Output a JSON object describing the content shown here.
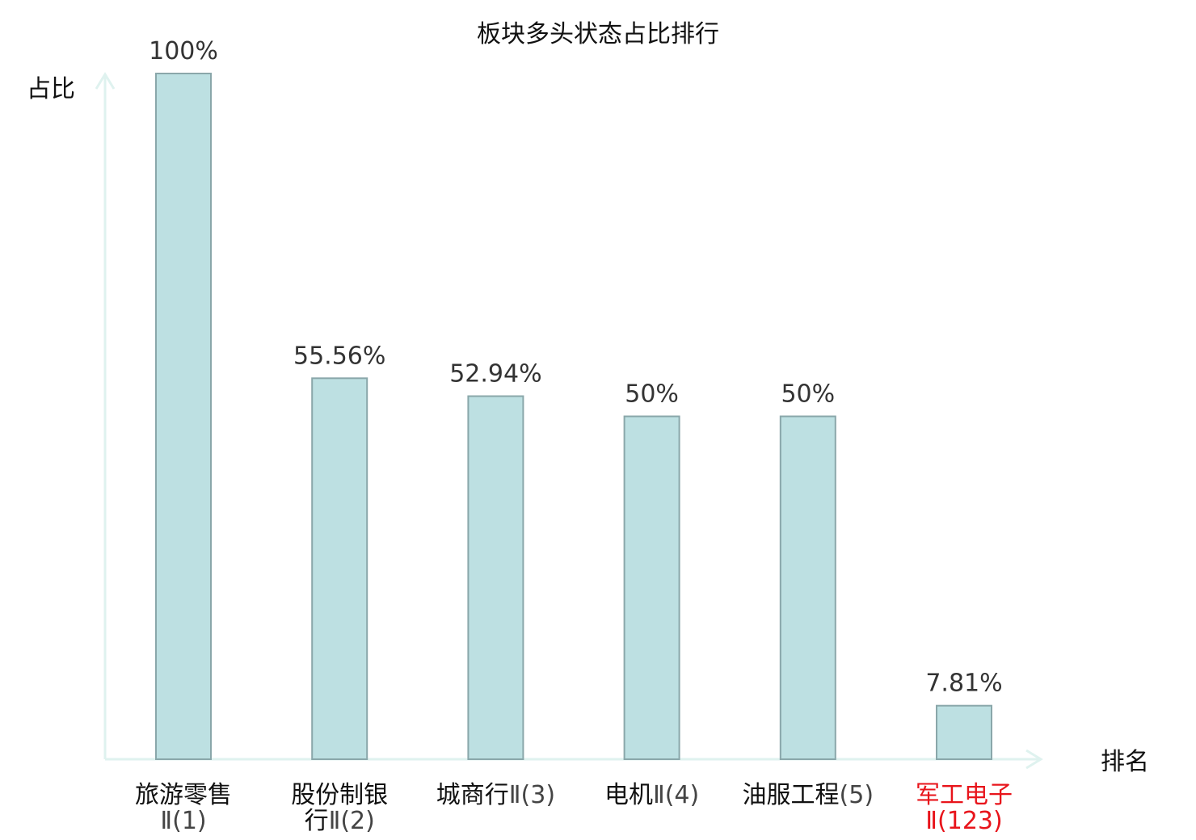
{
  "chart_data": {
    "type": "bar",
    "title": "板块多头状态占比排行",
    "ylabel": "占比",
    "xlabel": "排名",
    "ylim": [
      0,
      100
    ],
    "grid": false,
    "categories": [
      {
        "name_lines": [
          "旅游零售",
          ""
        ],
        "rank_lines": [
          "",
          "Ⅱ(1)"
        ],
        "value": 100,
        "value_label": "100%",
        "highlight": false
      },
      {
        "name_lines": [
          "股份制银",
          "行"
        ],
        "rank_lines": [
          "",
          "Ⅱ(2)"
        ],
        "value": 55.56,
        "value_label": "55.56%",
        "highlight": false
      },
      {
        "name_lines": [
          "城商行"
        ],
        "rank_lines": [
          "Ⅱ(3)"
        ],
        "value": 52.94,
        "value_label": "52.94%",
        "highlight": false
      },
      {
        "name_lines": [
          "电机"
        ],
        "rank_lines": [
          "Ⅱ(4)"
        ],
        "value": 50,
        "value_label": "50%",
        "highlight": false
      },
      {
        "name_lines": [
          "油服工程"
        ],
        "rank_lines": [
          "(5)"
        ],
        "value": 50,
        "value_label": "50%",
        "highlight": false
      },
      {
        "name_lines": [
          "军工电子",
          ""
        ],
        "rank_lines": [
          "",
          "Ⅱ(123)"
        ],
        "value": 7.81,
        "value_label": "7.81%",
        "highlight": true
      }
    ],
    "colors": {
      "bar_fill": "#bde0e2",
      "bar_stroke": "#8aa7aa",
      "axis": "#dff2ef",
      "highlight_text": "#e8141b"
    }
  }
}
